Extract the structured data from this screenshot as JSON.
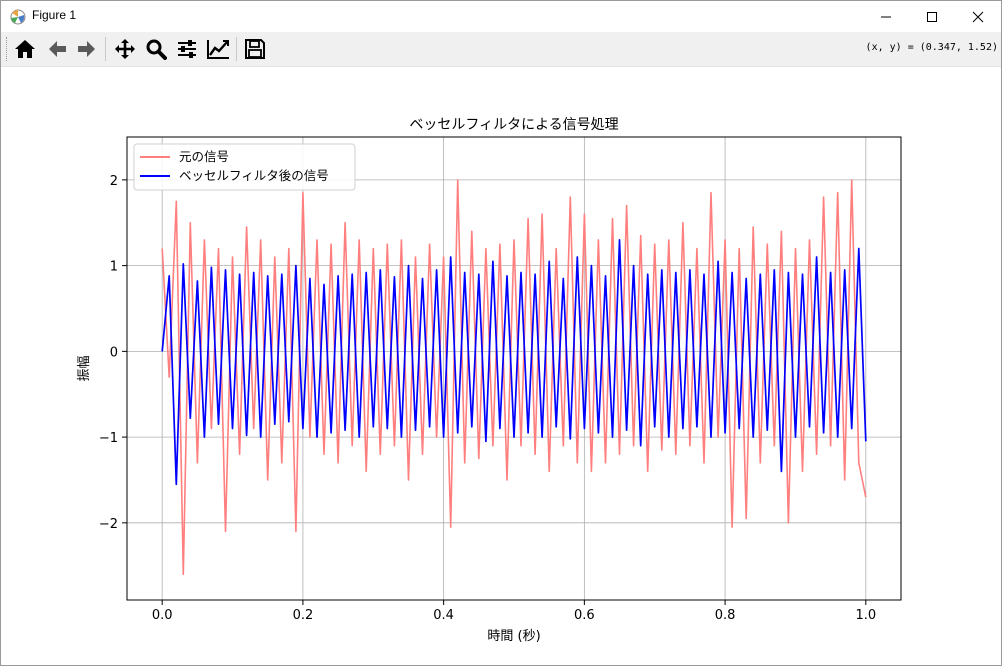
{
  "window": {
    "title": "Figure 1",
    "minimize_icon": "minimize-icon",
    "maximize_icon": "maximize-icon",
    "close_icon": "close-icon"
  },
  "toolbar": {
    "buttons": [
      {
        "name": "home",
        "icon": "home-icon"
      },
      {
        "name": "back",
        "icon": "arrow-left-icon"
      },
      {
        "name": "forward",
        "icon": "arrow-right-icon"
      },
      {
        "name": "pan",
        "icon": "move-icon"
      },
      {
        "name": "zoom",
        "icon": "magnifier-icon"
      },
      {
        "name": "configure-subplots",
        "icon": "sliders-icon"
      },
      {
        "name": "edit-axes",
        "icon": "line-chart-icon"
      },
      {
        "name": "save",
        "icon": "floppy-disk-icon"
      }
    ],
    "coordinates": "(x, y) = (0.347, 1.52)"
  },
  "chart_data": {
    "type": "line",
    "title": "ベッセルフィルタによる信号処理",
    "xlabel": "時間 (秒)",
    "ylabel": "振幅",
    "xlim": [
      -0.05,
      1.05
    ],
    "ylim": [
      -2.9,
      2.5
    ],
    "xticks": [
      0.0,
      0.2,
      0.4,
      0.6,
      0.8,
      1.0
    ],
    "xtick_labels": [
      "0.0",
      "0.2",
      "0.4",
      "0.6",
      "0.8",
      "1.0"
    ],
    "yticks": [
      -2,
      -1,
      0,
      1,
      2
    ],
    "ytick_labels": [
      "−2",
      "−1",
      "0",
      "1",
      "2"
    ],
    "grid": true,
    "legend_position": "upper-left",
    "series": [
      {
        "name": "元の信号",
        "color": "#ff7f7f",
        "x": [
          0.0,
          0.01,
          0.02,
          0.03,
          0.04,
          0.05,
          0.06,
          0.07,
          0.08,
          0.09,
          0.1,
          0.11,
          0.12,
          0.13,
          0.14,
          0.15,
          0.16,
          0.17,
          0.18,
          0.19,
          0.2,
          0.21,
          0.22,
          0.23,
          0.24,
          0.25,
          0.26,
          0.27,
          0.28,
          0.29,
          0.3,
          0.31,
          0.32,
          0.33,
          0.34,
          0.35,
          0.36,
          0.37,
          0.38,
          0.39,
          0.4,
          0.41,
          0.42,
          0.43,
          0.44,
          0.45,
          0.46,
          0.47,
          0.48,
          0.49,
          0.5,
          0.51,
          0.52,
          0.53,
          0.54,
          0.55,
          0.56,
          0.57,
          0.58,
          0.59,
          0.6,
          0.61,
          0.62,
          0.63,
          0.64,
          0.65,
          0.66,
          0.67,
          0.68,
          0.69,
          0.7,
          0.71,
          0.72,
          0.73,
          0.74,
          0.75,
          0.76,
          0.77,
          0.78,
          0.79,
          0.8,
          0.81,
          0.82,
          0.83,
          0.84,
          0.85,
          0.86,
          0.87,
          0.88,
          0.89,
          0.9,
          0.91,
          0.92,
          0.93,
          0.94,
          0.95,
          0.96,
          0.97,
          0.98,
          0.99,
          1.0
        ],
        "y": [
          1.2,
          -0.3,
          1.75,
          -2.6,
          1.5,
          -1.3,
          1.3,
          -0.9,
          1.2,
          -2.1,
          1.1,
          -1.2,
          1.45,
          -0.9,
          1.3,
          -1.5,
          1.1,
          -1.3,
          1.2,
          -2.1,
          1.85,
          -1.0,
          1.3,
          -1.2,
          1.25,
          -1.3,
          1.5,
          -1.1,
          1.3,
          -1.4,
          1.2,
          -1.2,
          1.25,
          -1.1,
          1.3,
          -1.5,
          1.1,
          -1.2,
          1.25,
          -1.0,
          1.1,
          -2.05,
          2.0,
          -1.3,
          1.4,
          -1.25,
          1.2,
          -1.1,
          1.25,
          -1.5,
          1.3,
          -1.1,
          1.55,
          -1.2,
          1.6,
          -1.4,
          1.2,
          -1.1,
          1.8,
          -1.3,
          1.6,
          -1.4,
          1.3,
          -1.3,
          1.55,
          -1.2,
          1.7,
          -1.1,
          1.35,
          -1.4,
          1.25,
          -1.15,
          1.3,
          -1.2,
          1.5,
          -1.1,
          1.2,
          -1.3,
          1.85,
          -1.0,
          1.3,
          -2.05,
          1.2,
          -1.95,
          1.45,
          -1.3,
          1.25,
          -1.1,
          1.4,
          -2.0,
          1.2,
          -1.4,
          1.3,
          -1.2,
          1.8,
          -1.1,
          1.85,
          -1.5,
          2.0,
          -1.3,
          -1.7
        ]
      },
      {
        "name": "ベッセルフィルタ後の信号",
        "color": "#0000ff",
        "x": [
          0.0,
          0.01,
          0.02,
          0.03,
          0.04,
          0.05,
          0.06,
          0.07,
          0.08,
          0.09,
          0.1,
          0.11,
          0.12,
          0.13,
          0.14,
          0.15,
          0.16,
          0.17,
          0.18,
          0.19,
          0.2,
          0.21,
          0.22,
          0.23,
          0.24,
          0.25,
          0.26,
          0.27,
          0.28,
          0.29,
          0.3,
          0.31,
          0.32,
          0.33,
          0.34,
          0.35,
          0.36,
          0.37,
          0.38,
          0.39,
          0.4,
          0.41,
          0.42,
          0.43,
          0.44,
          0.45,
          0.46,
          0.47,
          0.48,
          0.49,
          0.5,
          0.51,
          0.52,
          0.53,
          0.54,
          0.55,
          0.56,
          0.57,
          0.58,
          0.59,
          0.6,
          0.61,
          0.62,
          0.63,
          0.64,
          0.65,
          0.66,
          0.67,
          0.68,
          0.69,
          0.7,
          0.71,
          0.72,
          0.73,
          0.74,
          0.75,
          0.76,
          0.77,
          0.78,
          0.79,
          0.8,
          0.81,
          0.82,
          0.83,
          0.84,
          0.85,
          0.86,
          0.87,
          0.88,
          0.89,
          0.9,
          0.91,
          0.92,
          0.93,
          0.94,
          0.95,
          0.96,
          0.97,
          0.98,
          0.99,
          1.0
        ],
        "y": [
          0.0,
          0.88,
          -1.55,
          1.02,
          -0.78,
          0.82,
          -1.0,
          0.98,
          -0.85,
          0.95,
          -0.9,
          0.9,
          -0.98,
          0.92,
          -1.0,
          0.88,
          -0.85,
          0.9,
          -0.82,
          1.0,
          -0.9,
          0.85,
          -1.0,
          0.78,
          -0.95,
          0.88,
          -0.92,
          0.9,
          -1.0,
          0.92,
          -0.88,
          0.95,
          -0.9,
          0.87,
          -1.0,
          1.0,
          -0.92,
          0.85,
          -0.88,
          0.95,
          -1.0,
          1.1,
          -0.95,
          0.92,
          -0.88,
          0.9,
          -1.05,
          1.05,
          -0.9,
          0.88,
          -1.0,
          0.92,
          -0.95,
          0.9,
          -1.0,
          1.05,
          -0.88,
          0.85,
          -1.02,
          1.1,
          -0.9,
          1.0,
          -0.95,
          0.88,
          -1.0,
          1.3,
          -0.92,
          1.0,
          -1.1,
          0.9,
          -0.88,
          0.95,
          -1.0,
          0.92,
          -0.9,
          0.95,
          -0.88,
          0.9,
          -1.0,
          1.05,
          -0.95,
          0.92,
          -0.9,
          0.85,
          -1.0,
          0.9,
          -0.92,
          0.95,
          -1.4,
          0.92,
          -1.0,
          0.9,
          -0.88,
          1.1,
          -0.95,
          0.92,
          -1.0,
          0.95,
          -0.9,
          1.2,
          -1.05
        ]
      }
    ]
  }
}
